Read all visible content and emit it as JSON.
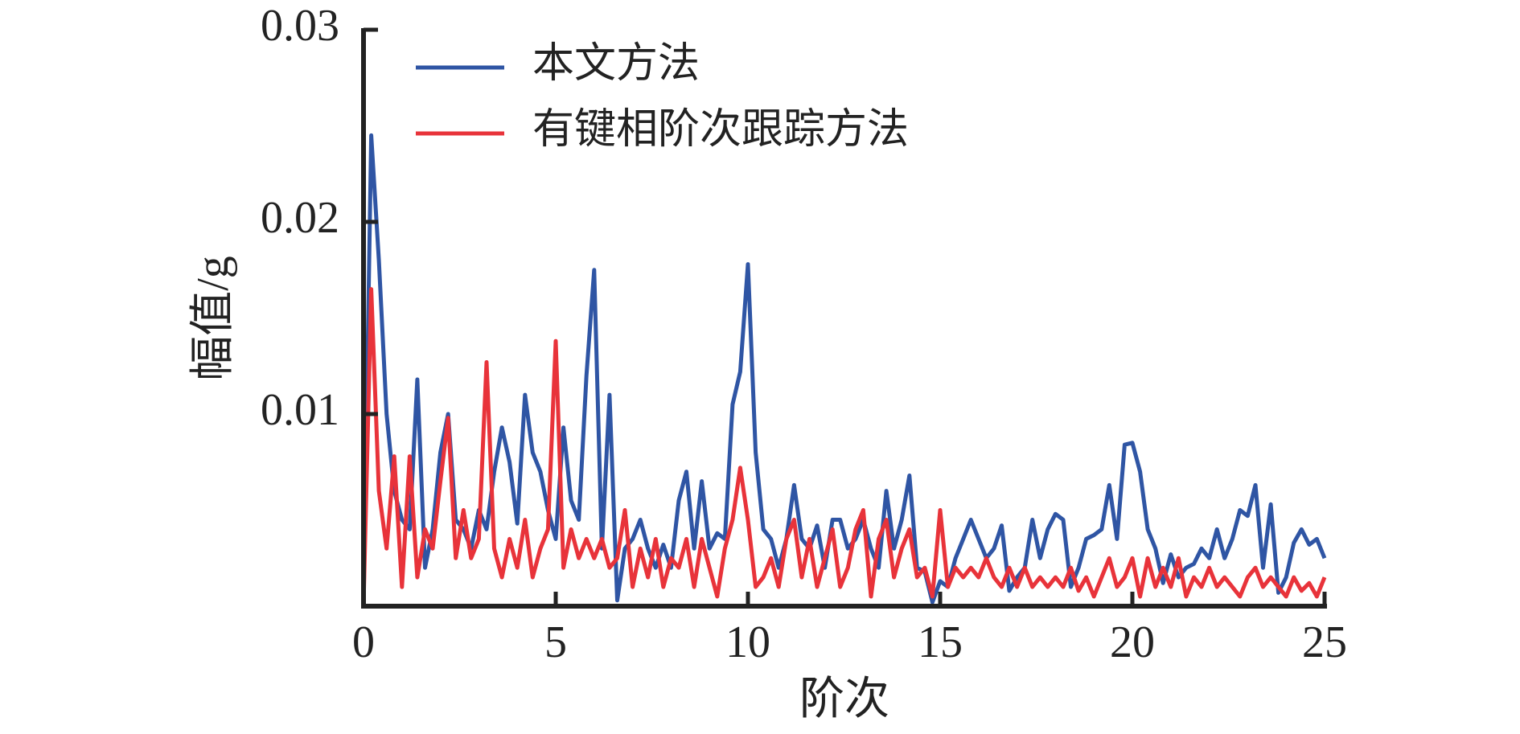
{
  "chart_data": {
    "type": "line",
    "xlabel": "阶次",
    "ylabel": "幅值/g",
    "xlim": [
      0,
      25
    ],
    "ylim": [
      0,
      0.03
    ],
    "xticks": [
      0,
      5,
      10,
      15,
      20,
      25
    ],
    "yticks": [
      0.01,
      0.02,
      0.03
    ],
    "legend": "upper left",
    "x": [
      0,
      0.2,
      0.4,
      0.6,
      0.8,
      1,
      1.2,
      1.4,
      1.6,
      1.8,
      2,
      2.2,
      2.4,
      2.6,
      2.8,
      3,
      3.2,
      3.4,
      3.6,
      3.8,
      4,
      4.2,
      4.4,
      4.6,
      4.8,
      5,
      5.2,
      5.4,
      5.6,
      5.8,
      6,
      6.2,
      6.4,
      6.6,
      6.8,
      7,
      7.2,
      7.4,
      7.6,
      7.8,
      8,
      8.2,
      8.4,
      8.6,
      8.8,
      9,
      9.2,
      9.4,
      9.6,
      9.8,
      10,
      10.2,
      10.4,
      10.6,
      10.8,
      11,
      11.2,
      11.4,
      11.6,
      11.8,
      12,
      12.2,
      12.4,
      12.6,
      12.8,
      13,
      13.2,
      13.4,
      13.6,
      13.8,
      14,
      14.2,
      14.4,
      14.6,
      14.8,
      15,
      15.2,
      15.4,
      15.6,
      15.8,
      16,
      16.2,
      16.4,
      16.6,
      16.8,
      17,
      17.2,
      17.4,
      17.6,
      17.8,
      18,
      18.2,
      18.4,
      18.6,
      18.8,
      19,
      19.2,
      19.4,
      19.6,
      19.8,
      20,
      20.2,
      20.4,
      20.6,
      20.8,
      21,
      21.2,
      21.4,
      21.6,
      21.8,
      22,
      22.2,
      22.4,
      22.6,
      22.8,
      23,
      23.2,
      23.4,
      23.6,
      23.8,
      24,
      24.2,
      24.4,
      24.6,
      24.8,
      25
    ],
    "series": [
      {
        "name": "本文方法",
        "color": "#2f55a4",
        "values": [
          0,
          0.0245,
          0.018,
          0.01,
          0.006,
          0.0045,
          0.004,
          0.0118,
          0.002,
          0.004,
          0.008,
          0.01,
          0.0045,
          0.004,
          0.003,
          0.005,
          0.004,
          0.007,
          0.0093,
          0.0075,
          0.0043,
          0.011,
          0.008,
          0.007,
          0.005,
          0.0035,
          0.0093,
          0.0055,
          0.0045,
          0.012,
          0.0175,
          0.003,
          0.011,
          0.0003,
          0.003,
          0.0035,
          0.0045,
          0.003,
          0.002,
          0.0032,
          0.002,
          0.0055,
          0.007,
          0.003,
          0.0065,
          0.003,
          0.0038,
          0.0035,
          0.0105,
          0.0122,
          0.0178,
          0.008,
          0.004,
          0.0035,
          0.002,
          0.0035,
          0.0063,
          0.0035,
          0.003,
          0.0042,
          0.002,
          0.0045,
          0.0045,
          0.003,
          0.0035,
          0.0045,
          0.003,
          0.002,
          0.006,
          0.003,
          0.0045,
          0.0068,
          0.002,
          0.0018,
          0.0002,
          0.0013,
          0.001,
          0.0025,
          0.0035,
          0.0045,
          0.0035,
          0.0025,
          0.003,
          0.0042,
          0.0008,
          0.0015,
          0.002,
          0.0045,
          0.0025,
          0.004,
          0.0048,
          0.0045,
          0.001,
          0.002,
          0.0035,
          0.0037,
          0.004,
          0.0063,
          0.0035,
          0.0084,
          0.0085,
          0.007,
          0.004,
          0.003,
          0.0012,
          0.0027,
          0.0015,
          0.002,
          0.0022,
          0.003,
          0.0025,
          0.004,
          0.0025,
          0.0035,
          0.005,
          0.0047,
          0.0063,
          0.002,
          0.0053,
          0.0007,
          0.0015,
          0.0033,
          0.004,
          0.0032,
          0.0035,
          0.0025
        ]
      },
      {
        "name": "有键相阶次跟踪方法",
        "color": "#e8333a",
        "values": [
          0,
          0.0165,
          0.006,
          0.003,
          0.0078,
          0.001,
          0.0078,
          0.0015,
          0.004,
          0.003,
          0.0065,
          0.0098,
          0.0025,
          0.005,
          0.0025,
          0.0035,
          0.0127,
          0.003,
          0.0015,
          0.0035,
          0.002,
          0.0045,
          0.0015,
          0.003,
          0.004,
          0.0138,
          0.002,
          0.004,
          0.0025,
          0.0035,
          0.0025,
          0.0035,
          0.002,
          0.0025,
          0.005,
          0.001,
          0.003,
          0.0015,
          0.0035,
          0.001,
          0.0025,
          0.002,
          0.0035,
          0.001,
          0.0035,
          0.002,
          0.0005,
          0.003,
          0.0045,
          0.0072,
          0.0045,
          0.001,
          0.0015,
          0.0025,
          0.001,
          0.0035,
          0.0045,
          0.0015,
          0.0035,
          0.001,
          0.0025,
          0.004,
          0.001,
          0.002,
          0.004,
          0.005,
          0.0005,
          0.0035,
          0.0045,
          0.0015,
          0.003,
          0.004,
          0.0015,
          0.002,
          0.0005,
          0.005,
          0.001,
          0.002,
          0.0015,
          0.002,
          0.0015,
          0.0025,
          0.0015,
          0.001,
          0.002,
          0.001,
          0.002,
          0.001,
          0.0015,
          0.001,
          0.0015,
          0.001,
          0.002,
          0.0008,
          0.0015,
          0.0005,
          0.0015,
          0.0025,
          0.001,
          0.0015,
          0.0025,
          0.0005,
          0.0025,
          0.001,
          0.002,
          0.001,
          0.0025,
          0.0005,
          0.0015,
          0.001,
          0.002,
          0.001,
          0.0015,
          0.001,
          0.0005,
          0.0015,
          0.002,
          0.001,
          0.0015,
          0.001,
          0.0005,
          0.0015,
          0.0008,
          0.0012,
          0.0005,
          0.0015
        ]
      }
    ]
  }
}
